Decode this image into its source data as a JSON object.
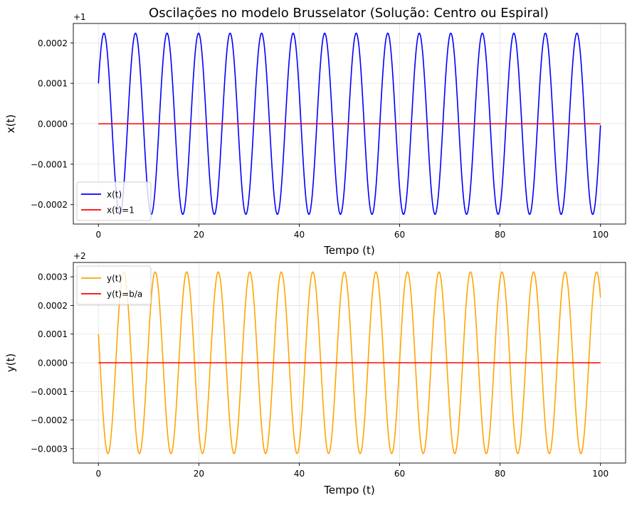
{
  "title": "Oscilações no modelo Brusselator (Solução: Centro ou Espiral)",
  "chart_data": [
    {
      "type": "line",
      "title": "Oscilações no modelo Brusselator (Solução: Centro ou Espiral)",
      "xlabel": "Tempo (t)",
      "ylabel": "x(t)",
      "offset_text": "+1",
      "xlim": [
        -5,
        105
      ],
      "ylim": [
        -0.000248,
        0.000248
      ],
      "xticks": [
        0,
        20,
        40,
        60,
        80,
        100
      ],
      "xtick_labels": [
        "0",
        "20",
        "40",
        "60",
        "80",
        "100"
      ],
      "yticks": [
        -0.0002,
        -0.0001,
        0,
        0.0001,
        0.0002
      ],
      "ytick_labels": [
        "−0.0002",
        "−0.0001",
        "0.0000",
        "0.0001",
        "0.0002"
      ],
      "grid": true,
      "legend_position": "lower-left",
      "series": [
        {
          "name": "x(t)",
          "color": "#0000ff",
          "kind": "damped-free oscillation (offset from 1)",
          "params": {
            "amplitude": 0.000224,
            "period": 6.28,
            "phase_start": 0.0001,
            "x_start": 0,
            "x_end": 100,
            "initial_slope": "up"
          }
        },
        {
          "name": "x(t)=1",
          "color": "#ff0000",
          "kind": "constant",
          "params": {
            "value": 0,
            "x_start": 0,
            "x_end": 100
          }
        }
      ]
    },
    {
      "type": "line",
      "xlabel": "Tempo (t)",
      "ylabel": "y(t)",
      "offset_text": "+2",
      "xlim": [
        -5,
        105
      ],
      "ylim": [
        -0.00035,
        0.00035
      ],
      "xticks": [
        0,
        20,
        40,
        60,
        80,
        100
      ],
      "xtick_labels": [
        "0",
        "20",
        "40",
        "60",
        "80",
        "100"
      ],
      "yticks": [
        -0.0003,
        -0.0002,
        -0.0001,
        0,
        0.0001,
        0.0002,
        0.0003
      ],
      "ytick_labels": [
        "−0.0003",
        "−0.0002",
        "−0.0001",
        "0.0000",
        "0.0001",
        "0.0002",
        "0.0003"
      ],
      "grid": true,
      "legend_position": "upper-left",
      "series": [
        {
          "name": "y(t)",
          "color": "#ffa500",
          "kind": "oscillation (offset from 2)",
          "params": {
            "amplitude": 0.000317,
            "period": 6.28,
            "phase_start": 0.0001,
            "x_start": 0,
            "x_end": 100,
            "initial_slope": "down"
          }
        },
        {
          "name": "y(t)=b/a",
          "color": "#ff0000",
          "kind": "constant",
          "params": {
            "value": 0,
            "x_start": 0,
            "x_end": 100
          }
        }
      ]
    }
  ]
}
